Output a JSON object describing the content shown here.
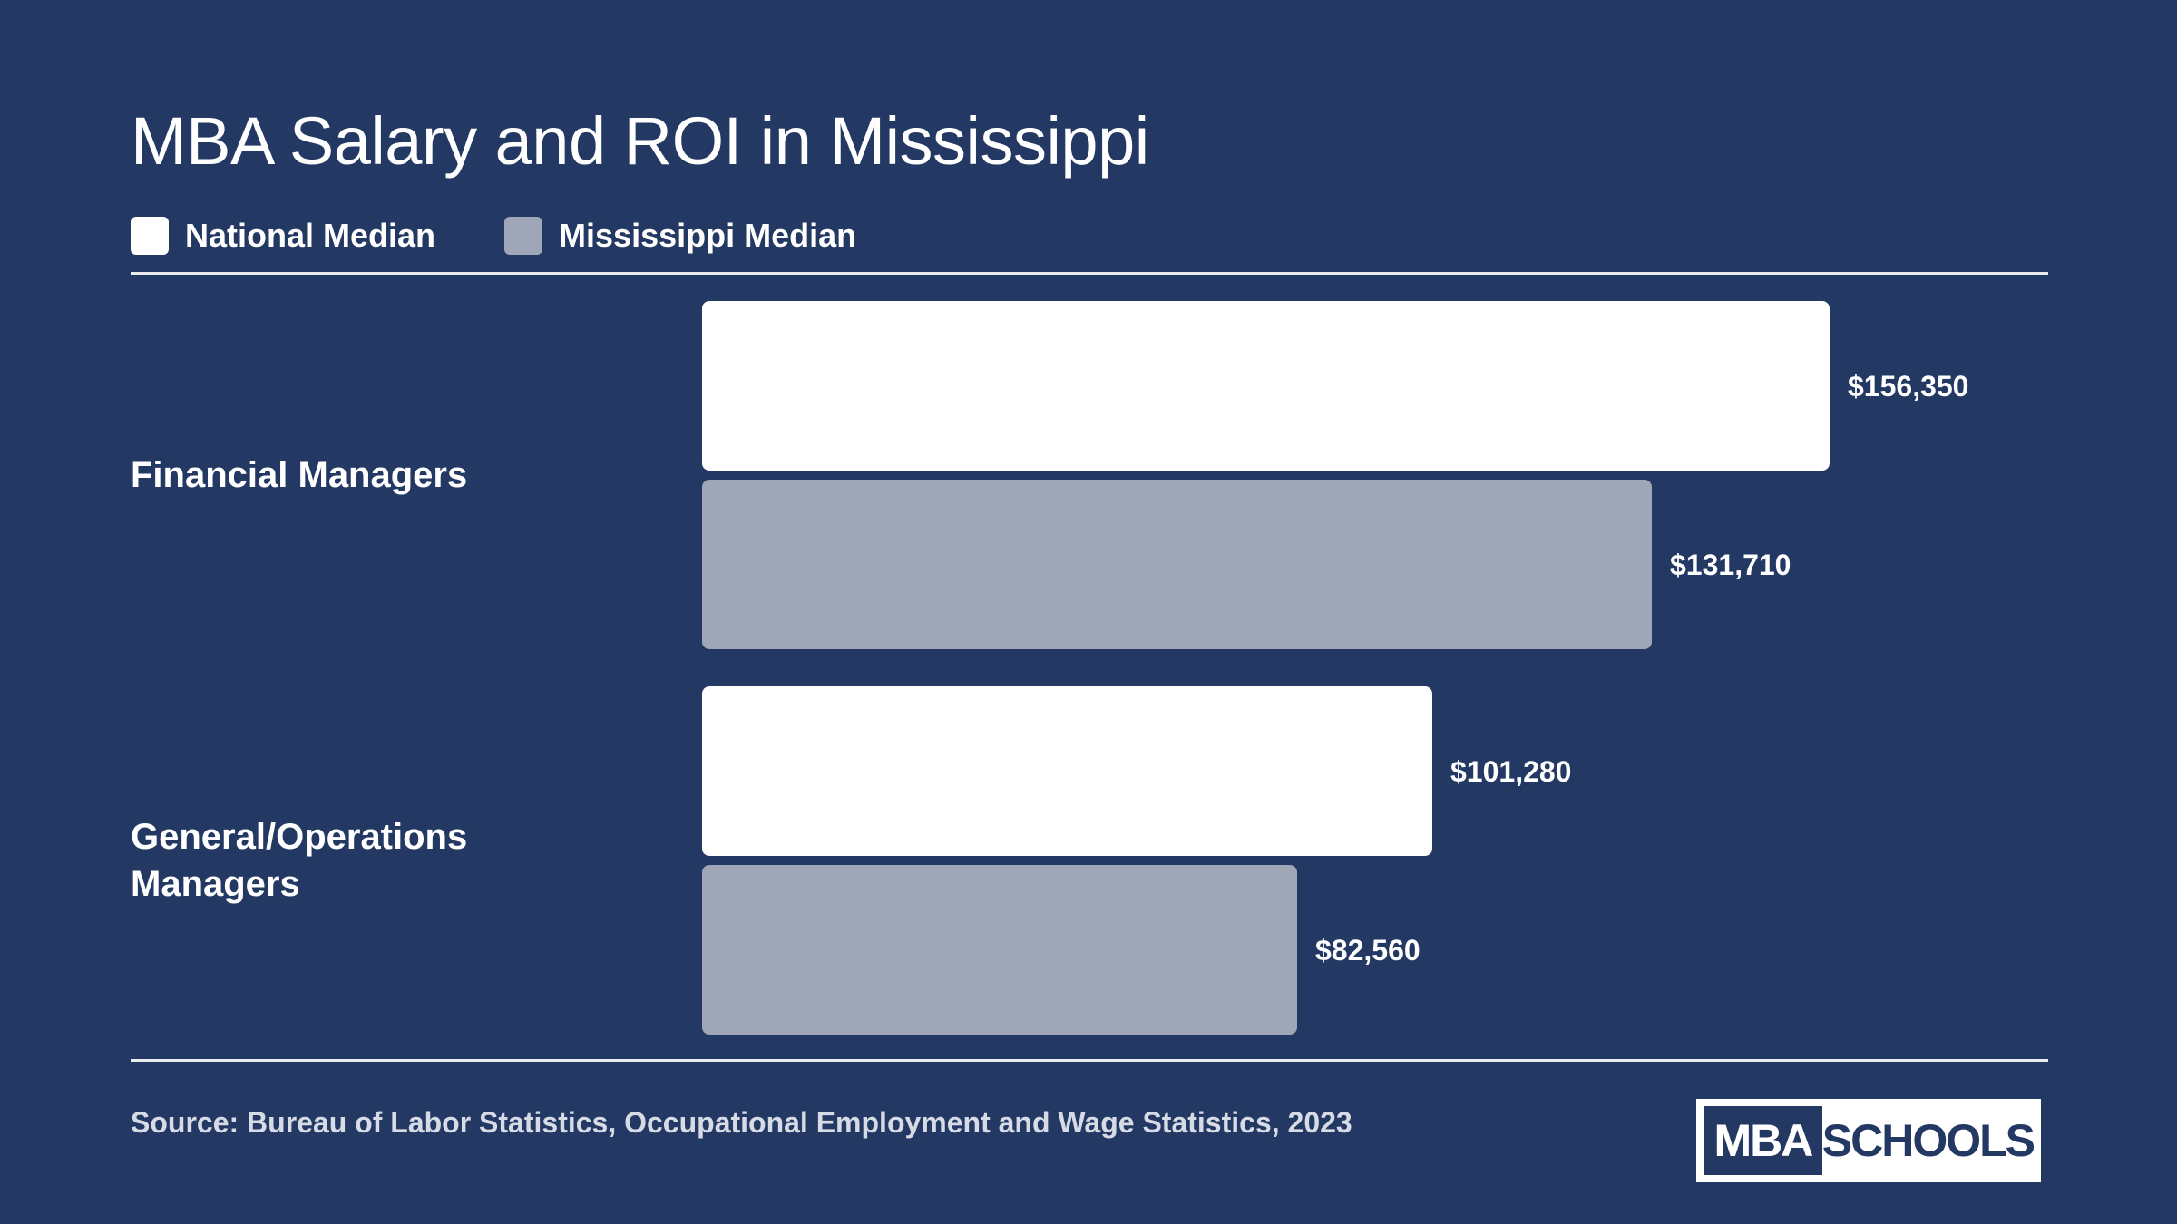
{
  "chart_data": {
    "type": "bar",
    "orientation": "horizontal",
    "title": "MBA Salary and ROI in Mississippi",
    "categories": [
      "Financial Managers",
      "General/Operations Managers"
    ],
    "series": [
      {
        "name": "National Median",
        "color": "#ffffff",
        "values": [
          156350,
          101280
        ],
        "labels": [
          "$156,350",
          "$101,280"
        ]
      },
      {
        "name": "Mississippi Median",
        "color": "#9ea6b8",
        "values": [
          131710,
          82560
        ],
        "labels": [
          "$131,710",
          "$82,560"
        ]
      }
    ],
    "xlim": [
      0,
      156350
    ],
    "grid": false,
    "legend_position": "top-left",
    "source": "Source: Bureau of Labor Statistics, Occupational Employment and Wage Statistics, 2023"
  },
  "logo": {
    "left_text": "MBA",
    "right_text": "SCHOOLS"
  },
  "colors": {
    "background": "#233862",
    "national": "#ffffff",
    "mississippi": "#9ea6b8"
  }
}
